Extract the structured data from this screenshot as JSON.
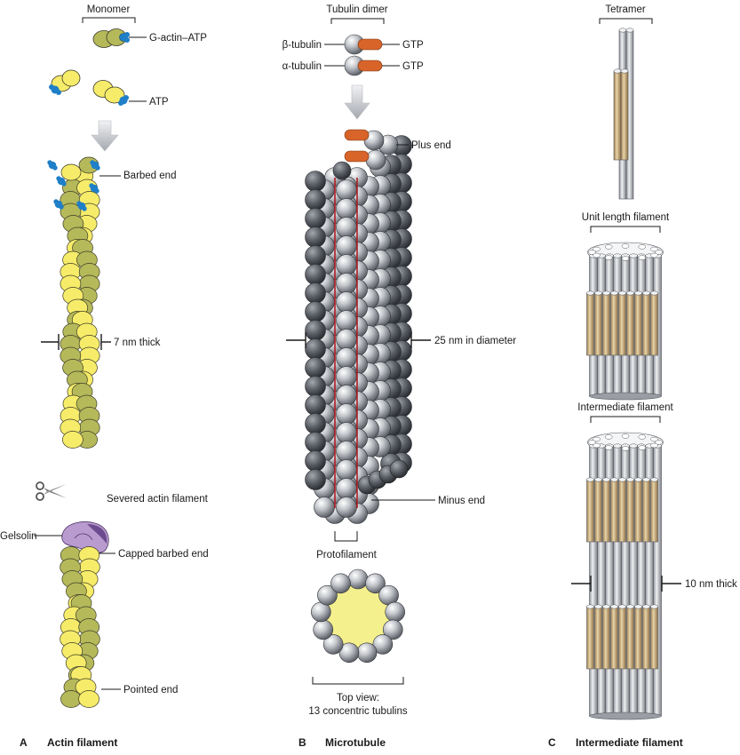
{
  "panels": [
    {
      "letter": "A",
      "title": "Actin filament"
    },
    {
      "letter": "B",
      "title": "Microtubule"
    },
    {
      "letter": "C",
      "title": "Intermediate filament"
    }
  ],
  "actin": {
    "monomer": "Monomer",
    "g_actin_atp": "G-actin–ATP",
    "atp": "ATP",
    "barbed_end": "Barbed end",
    "thickness": "7 nm thick",
    "severed": "Severed actin filament",
    "gelsolin": "Gelsolin",
    "capped": "Capped barbed end",
    "pointed_end": "Pointed end"
  },
  "microtubule": {
    "dimer": "Tubulin dimer",
    "beta": "β-tubulin",
    "alpha": "α-tubulin",
    "gtp_beta": "GTP",
    "gtp_alpha": "GTP",
    "plus_end": "Plus end",
    "diameter": "25 nm in diameter",
    "minus_end": "Minus end",
    "protofilament": "Protofilament",
    "top_view_line1": "Top view:",
    "top_view_line2": "13 concentric tubulins"
  },
  "intermediate": {
    "tetramer": "Tetramer",
    "unit_length": "Unit length filament",
    "filament": "Intermediate filament",
    "thickness": "10 nm thick"
  },
  "colors": {
    "actin_yellow": "#f7ec6a",
    "actin_olive": "#b5b95a",
    "atp_blue": "#1f7fc8",
    "gtp_orange": "#d8642a",
    "tubulin_grey": "#b8bcc2",
    "tan_rod": "#c9ad7c",
    "grey_rod": "#c8cbd0",
    "gelsolin_purple": "#a17bc0",
    "lumen_yellow": "#f5f08e"
  }
}
